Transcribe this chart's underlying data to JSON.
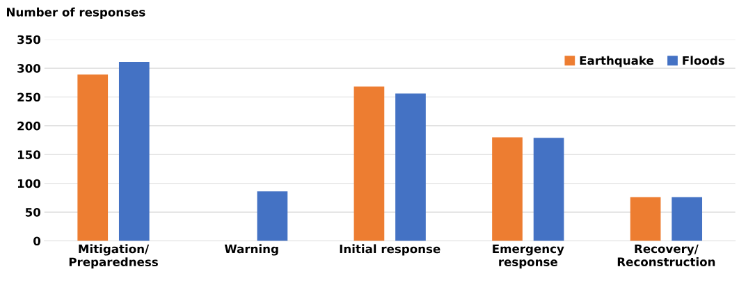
{
  "chart_data": {
    "type": "bar",
    "ylabel": "Number of responses",
    "categories": [
      "Mitigation/\nPreparedness",
      "Warning",
      "Initial response",
      "Emergency\nresponse",
      "Recovery/\nReconstruction"
    ],
    "series": [
      {
        "name": "Earthquake",
        "color": "#ed7d31",
        "values": [
          289,
          0,
          268,
          180,
          76
        ]
      },
      {
        "name": "Floods",
        "color": "#4472c4",
        "values": [
          311,
          86,
          256,
          179,
          76
        ]
      }
    ],
    "ylim": [
      0,
      350
    ],
    "yticks": [
      0,
      50,
      100,
      150,
      200,
      250,
      300,
      350
    ],
    "grid": "y",
    "legend": "top right"
  }
}
